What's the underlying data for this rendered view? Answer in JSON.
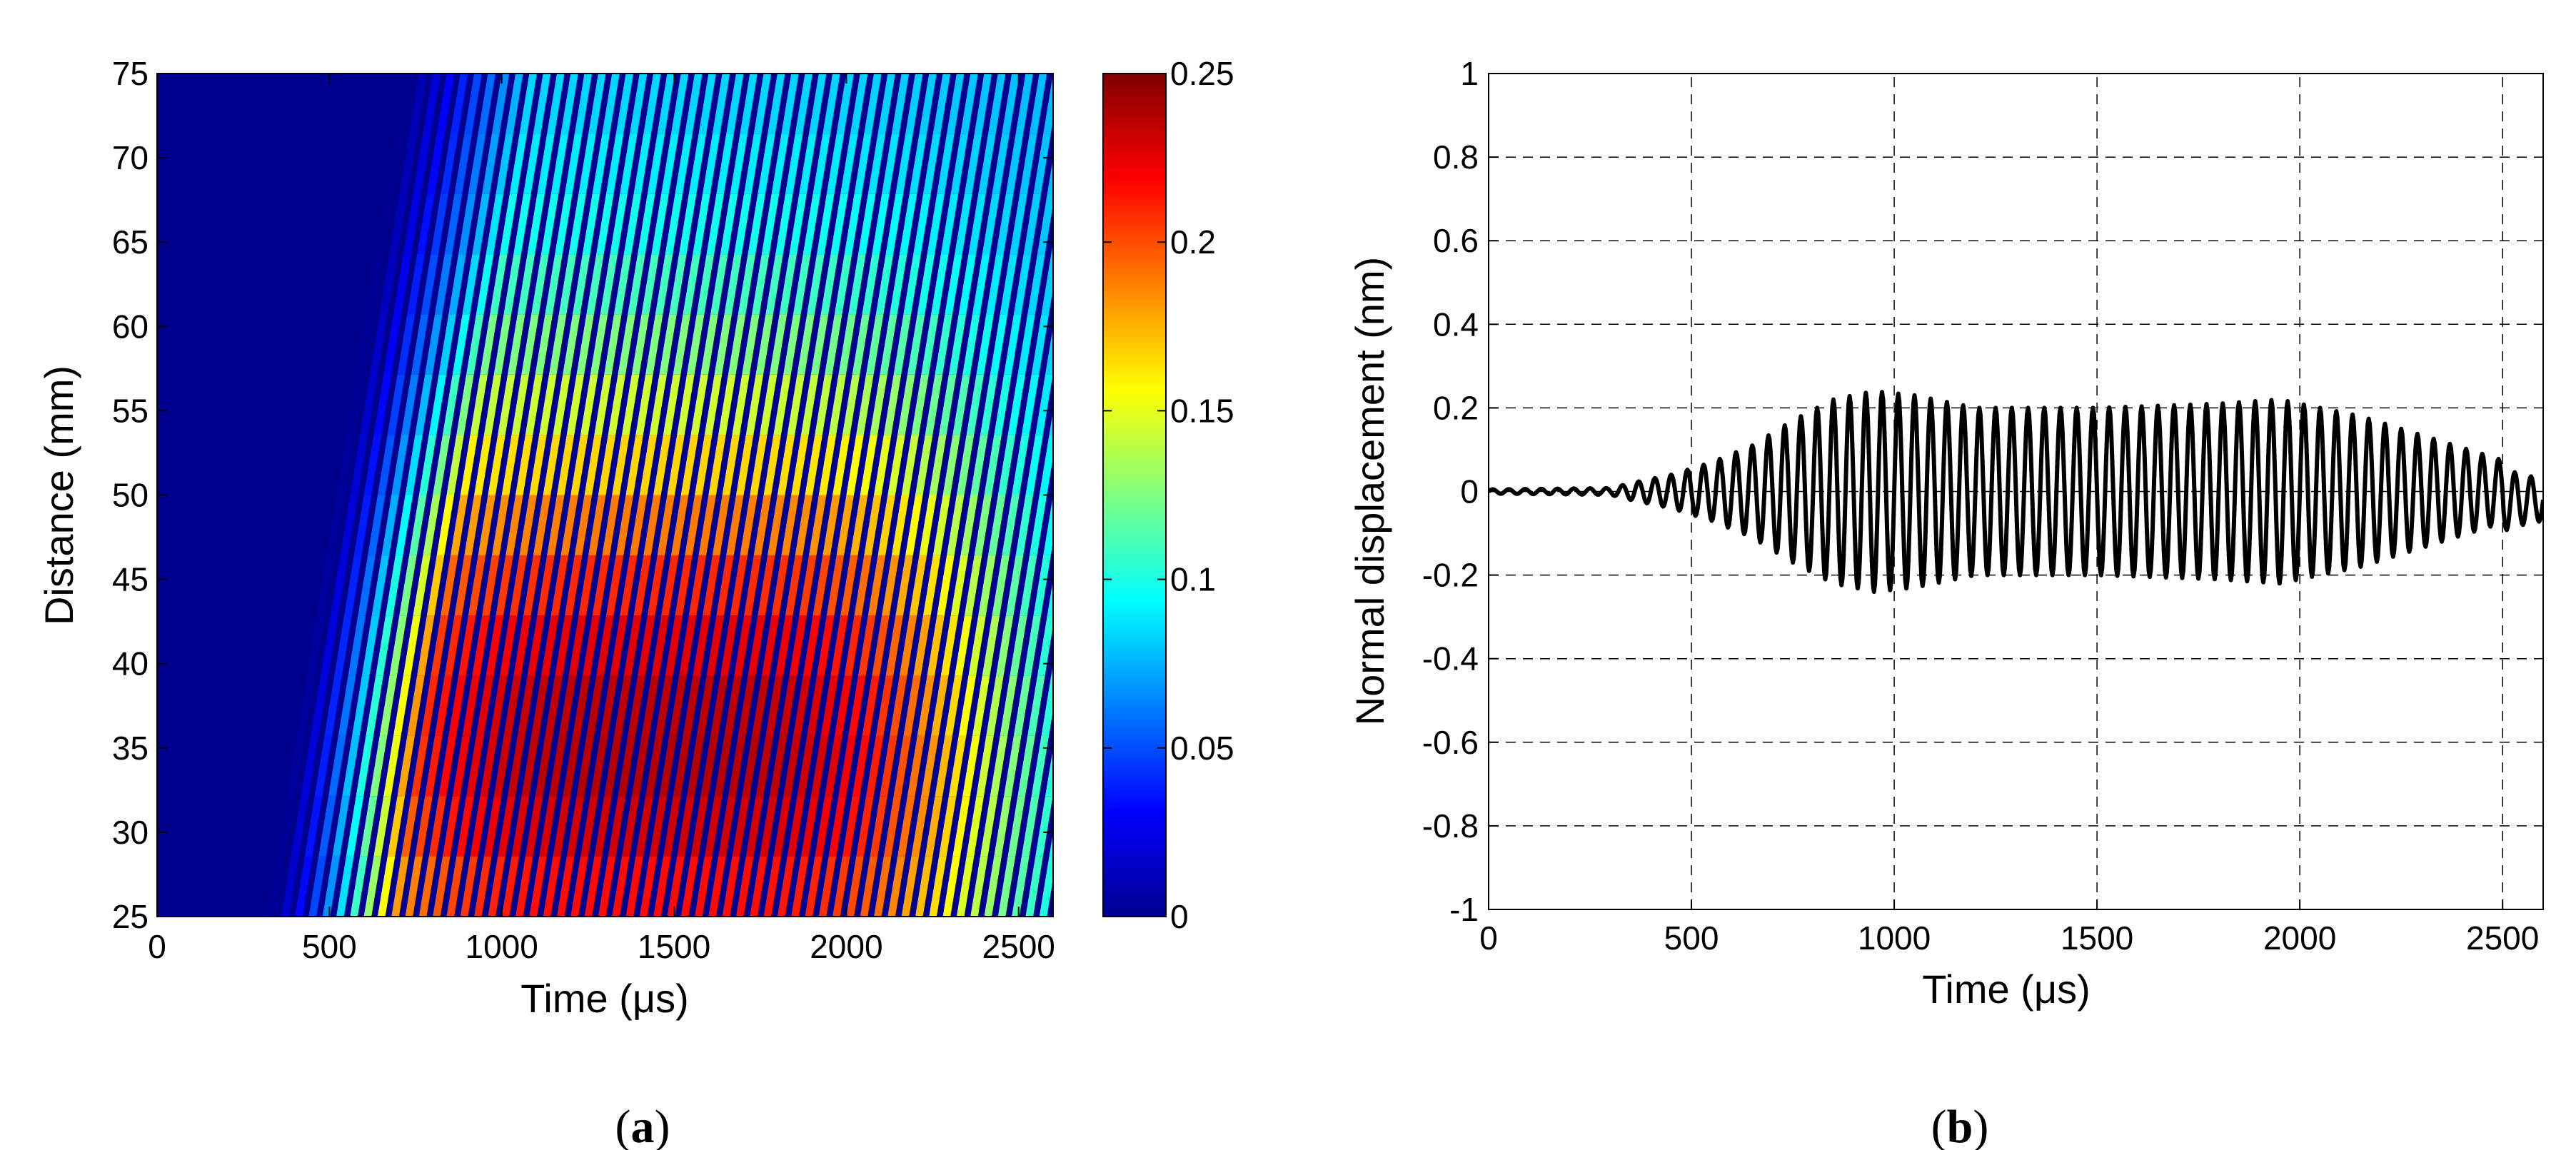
{
  "chart_data": [
    {
      "type": "heatmap",
      "panel_label": {
        "open": "(",
        "letter": "a",
        "close": ")"
      },
      "xlabel": "Time (μs)",
      "ylabel": "Distance (mm)",
      "xlim": [
        0,
        2600
      ],
      "ylim": [
        25,
        75
      ],
      "xticks": [
        0,
        500,
        1000,
        1500,
        2000,
        2500
      ],
      "yticks": [
        25,
        30,
        35,
        40,
        45,
        50,
        55,
        60,
        65,
        70,
        75
      ],
      "colorbar": {
        "colormap": "jet",
        "clim": [
          0,
          0.25
        ],
        "ticks": [
          0,
          0.05,
          0.1,
          0.15,
          0.2,
          0.25
        ]
      },
      "wave_field": {
        "description_units": "time in μs, distance in mm, amplitude in nm",
        "source_distance": 25,
        "onset_time_at_source": 320,
        "onset_time_at_75mm": 720,
        "period": 40,
        "peak_amplitude": 0.25,
        "peak_region": {
          "time": [
            800,
            2100
          ],
          "distance": [
            28,
            42
          ]
        }
      }
    },
    {
      "type": "line",
      "panel_label": {
        "open": "(",
        "letter": "b",
        "close": ")"
      },
      "xlabel": "Time (μs)",
      "ylabel": "Normal displacement (nm)",
      "xlim": [
        0,
        2600
      ],
      "ylim": [
        -1,
        1
      ],
      "xticks": [
        0,
        500,
        1000,
        1500,
        2000,
        2500
      ],
      "yticks": [
        -1,
        -0.8,
        -0.6,
        -0.4,
        -0.2,
        0,
        0.2,
        0.4,
        0.6,
        0.8,
        1
      ],
      "grid": true,
      "series": [
        {
          "color": "#000000",
          "period": 40,
          "envelope_time": [
            0,
            300,
            350,
            450,
            550,
            650,
            750,
            850,
            950,
            1050,
            1200,
            1500,
            1800,
            1950,
            2050,
            2150,
            2250,
            2350,
            2450,
            2550,
            2600
          ],
          "envelope_amplitude": [
            0.005,
            0.008,
            0.02,
            0.04,
            0.07,
            0.11,
            0.17,
            0.22,
            0.24,
            0.23,
            0.2,
            0.2,
            0.21,
            0.22,
            0.2,
            0.18,
            0.15,
            0.12,
            0.09,
            0.06,
            0.05
          ]
        }
      ]
    }
  ]
}
